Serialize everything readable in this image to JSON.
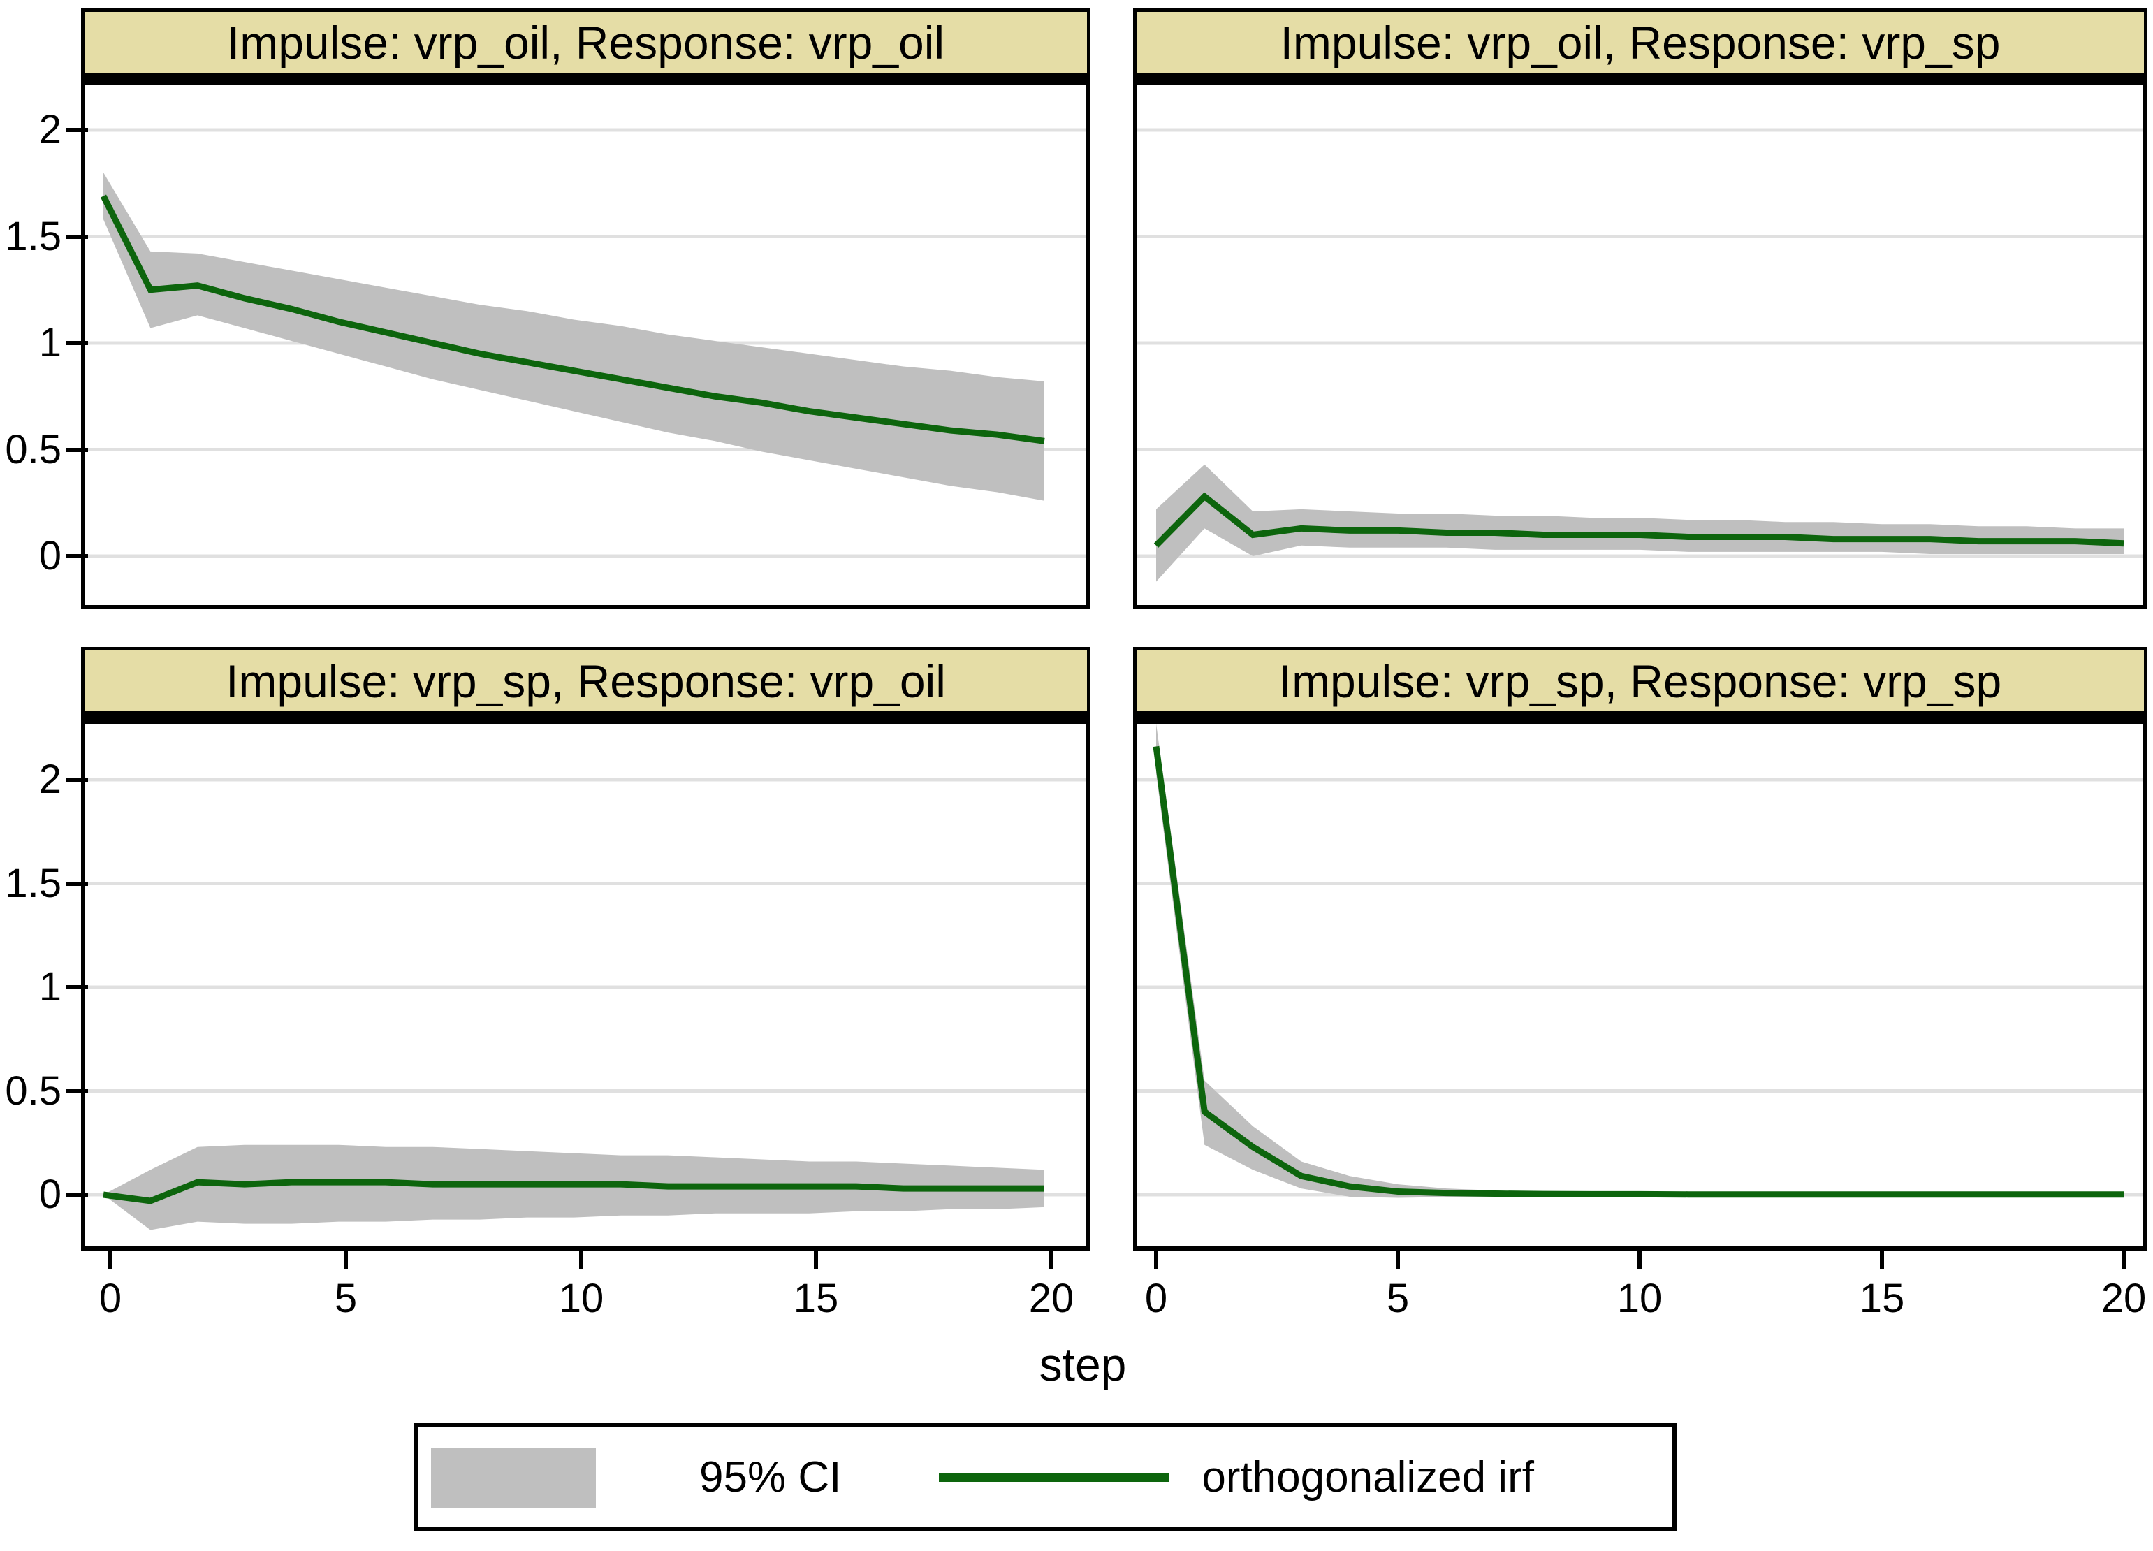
{
  "figure": {
    "xlabel": "step",
    "legend": {
      "ci_label": "95% CI",
      "irf_label": "orthogonalized irf"
    },
    "colors": {
      "title_bg": "#e5dda6",
      "grid": "#e0e0e0",
      "band": "#bfbfbf",
      "line": "#0d650d",
      "axis": "#000000"
    }
  },
  "axes": {
    "y_ticks": [
      "2",
      "1.5",
      "1",
      "0.5",
      "0"
    ],
    "x_ticks": [
      "0",
      "5",
      "10",
      "15",
      "20"
    ]
  },
  "chart_data": [
    {
      "type": "line",
      "title": "Impulse: vrp_oil, Response: vrp_oil",
      "impulse": "vrp_oil",
      "response": "vrp_oil",
      "xlabel": "step",
      "xlim": [
        -0.5,
        20.7
      ],
      "ylim": [
        -0.25,
        2.22
      ],
      "yticks": [
        0,
        0.5,
        1,
        1.5,
        2
      ],
      "xticks": [
        0,
        5,
        10,
        15,
        20
      ],
      "x": [
        0,
        1,
        2,
        3,
        4,
        5,
        6,
        7,
        8,
        9,
        10,
        11,
        12,
        13,
        14,
        15,
        16,
        17,
        18,
        19,
        20
      ],
      "irf": [
        1.69,
        1.25,
        1.27,
        1.21,
        1.16,
        1.1,
        1.05,
        1.0,
        0.95,
        0.91,
        0.87,
        0.83,
        0.79,
        0.75,
        0.72,
        0.68,
        0.65,
        0.62,
        0.59,
        0.57,
        0.54
      ],
      "ci_upper": [
        1.8,
        1.43,
        1.42,
        1.38,
        1.34,
        1.3,
        1.26,
        1.22,
        1.18,
        1.15,
        1.11,
        1.08,
        1.04,
        1.01,
        0.98,
        0.95,
        0.92,
        0.89,
        0.87,
        0.84,
        0.82
      ],
      "ci_lower": [
        1.58,
        1.07,
        1.13,
        1.07,
        1.01,
        0.95,
        0.89,
        0.83,
        0.78,
        0.73,
        0.68,
        0.63,
        0.58,
        0.54,
        0.49,
        0.45,
        0.41,
        0.37,
        0.33,
        0.3,
        0.26
      ]
    },
    {
      "type": "line",
      "title": "Impulse: vrp_oil, Response: vrp_sp",
      "impulse": "vrp_oil",
      "response": "vrp_sp",
      "xlabel": "step",
      "xlim": [
        -0.5,
        20.7
      ],
      "ylim": [
        -0.25,
        2.22
      ],
      "yticks": [
        0,
        0.5,
        1,
        1.5,
        2
      ],
      "xticks": [
        0,
        5,
        10,
        15,
        20
      ],
      "x": [
        0,
        1,
        2,
        3,
        4,
        5,
        6,
        7,
        8,
        9,
        10,
        11,
        12,
        13,
        14,
        15,
        16,
        17,
        18,
        19,
        20
      ],
      "irf": [
        0.05,
        0.28,
        0.1,
        0.13,
        0.12,
        0.12,
        0.11,
        0.11,
        0.1,
        0.1,
        0.1,
        0.09,
        0.09,
        0.09,
        0.08,
        0.08,
        0.08,
        0.07,
        0.07,
        0.07,
        0.06
      ],
      "ci_upper": [
        0.22,
        0.43,
        0.21,
        0.22,
        0.21,
        0.2,
        0.2,
        0.19,
        0.19,
        0.18,
        0.18,
        0.17,
        0.17,
        0.16,
        0.16,
        0.15,
        0.15,
        0.14,
        0.14,
        0.13,
        0.13
      ],
      "ci_lower": [
        -0.12,
        0.13,
        0.0,
        0.05,
        0.04,
        0.04,
        0.04,
        0.03,
        0.03,
        0.03,
        0.03,
        0.02,
        0.02,
        0.02,
        0.02,
        0.02,
        0.01,
        0.01,
        0.01,
        0.01,
        0.01
      ]
    },
    {
      "type": "line",
      "title": "Impulse: vrp_sp, Response: vrp_oil",
      "impulse": "vrp_sp",
      "response": "vrp_oil",
      "xlabel": "step",
      "xlim": [
        -0.5,
        20.7
      ],
      "ylim": [
        -0.27,
        2.29
      ],
      "yticks": [
        0,
        0.5,
        1,
        1.5,
        2
      ],
      "xticks": [
        0,
        5,
        10,
        15,
        20
      ],
      "x": [
        0,
        1,
        2,
        3,
        4,
        5,
        6,
        7,
        8,
        9,
        10,
        11,
        12,
        13,
        14,
        15,
        16,
        17,
        18,
        19,
        20
      ],
      "irf": [
        0.0,
        -0.03,
        0.06,
        0.05,
        0.06,
        0.06,
        0.06,
        0.05,
        0.05,
        0.05,
        0.05,
        0.05,
        0.04,
        0.04,
        0.04,
        0.04,
        0.04,
        0.03,
        0.03,
        0.03,
        0.03
      ],
      "ci_upper": [
        0.0,
        0.12,
        0.23,
        0.24,
        0.24,
        0.24,
        0.23,
        0.23,
        0.22,
        0.21,
        0.2,
        0.19,
        0.19,
        0.18,
        0.17,
        0.16,
        0.16,
        0.15,
        0.14,
        0.13,
        0.12
      ],
      "ci_lower": [
        0.0,
        -0.17,
        -0.13,
        -0.14,
        -0.14,
        -0.13,
        -0.13,
        -0.12,
        -0.12,
        -0.11,
        -0.11,
        -0.1,
        -0.1,
        -0.09,
        -0.09,
        -0.09,
        -0.08,
        -0.08,
        -0.07,
        -0.07,
        -0.06
      ]
    },
    {
      "type": "line",
      "title": "Impulse: vrp_sp, Response: vrp_sp",
      "impulse": "vrp_sp",
      "response": "vrp_sp",
      "xlabel": "step",
      "xlim": [
        -0.5,
        20.7
      ],
      "ylim": [
        -0.27,
        2.29
      ],
      "yticks": [
        0,
        0.5,
        1,
        1.5,
        2
      ],
      "xticks": [
        0,
        5,
        10,
        15,
        20
      ],
      "x": [
        0,
        1,
        2,
        3,
        4,
        5,
        6,
        7,
        8,
        9,
        10,
        11,
        12,
        13,
        14,
        15,
        16,
        17,
        18,
        19,
        20
      ],
      "irf": [
        2.16,
        0.4,
        0.23,
        0.09,
        0.04,
        0.015,
        0.008,
        0.005,
        0.003,
        0.002,
        0.002,
        0.001,
        0.001,
        0.001,
        0.001,
        0.001,
        0.001,
        0.001,
        0.001,
        0.001,
        0.001
      ],
      "ci_upper": [
        2.27,
        0.55,
        0.33,
        0.16,
        0.09,
        0.05,
        0.03,
        0.02,
        0.013,
        0.01,
        0.008,
        0.007,
        0.006,
        0.005,
        0.005,
        0.004,
        0.004,
        0.004,
        0.003,
        0.003,
        0.003
      ],
      "ci_lower": [
        2.03,
        0.24,
        0.12,
        0.03,
        -0.01,
        -0.015,
        -0.012,
        -0.01,
        -0.008,
        -0.006,
        -0.005,
        -0.005,
        -0.004,
        -0.004,
        -0.003,
        -0.003,
        -0.003,
        -0.003,
        -0.002,
        -0.002,
        -0.002
      ]
    }
  ]
}
